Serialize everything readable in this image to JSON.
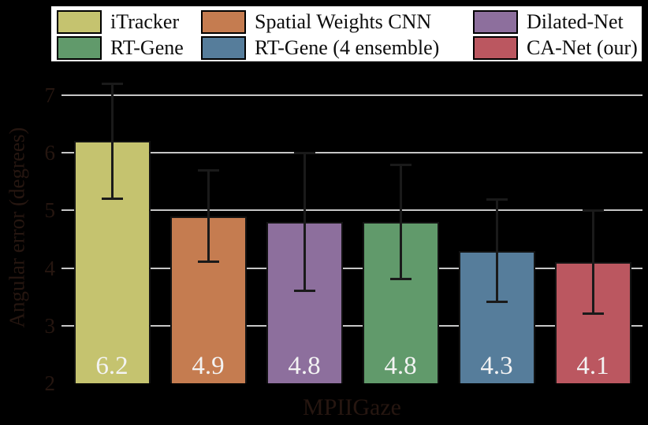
{
  "figure": {
    "background": "#000000",
    "grid_color": "#c6c6c6",
    "bar_label_color": "#f3f3f3",
    "axis_text_color": "#261610"
  },
  "legend": {
    "columns": [
      [
        {
          "label": "iTracker",
          "color": "#c5c36f"
        },
        {
          "label": "RT-Gene",
          "color": "#619a6b"
        }
      ],
      [
        {
          "label": "Spatial Weights CNN",
          "color": "#c57c50"
        },
        {
          "label": "RT-Gene (4 ensemble)",
          "color": "#567d9b"
        }
      ],
      [
        {
          "label": "Dilated-Net",
          "color": "#8d6f9d"
        },
        {
          "label": "CA-Net (our)",
          "color": "#bb5760"
        }
      ]
    ]
  },
  "chart_data": {
    "type": "bar",
    "title": "",
    "xlabel": "MPIIGaze",
    "ylabel": "Angular error (degrees)",
    "ylim": [
      2,
      7.42
    ],
    "yticks": [
      2,
      3,
      4,
      5,
      6,
      7
    ],
    "grid": true,
    "legend_position": "top",
    "categories": [
      "iTracker",
      "Spatial Weights CNN",
      "Dilated-Net",
      "RT-Gene",
      "RT-Gene (4 ensemble)",
      "CA-Net (our)"
    ],
    "values": [
      6.2,
      4.9,
      4.8,
      4.8,
      4.3,
      4.1
    ],
    "errors": [
      1.0,
      0.8,
      1.2,
      1.0,
      0.9,
      0.9
    ],
    "bar_labels": [
      "6.2",
      "4.9",
      "4.8",
      "4.8",
      "4.3",
      "4.1"
    ],
    "colors": [
      "#c5c36f",
      "#c57c50",
      "#8d6f9d",
      "#619a6b",
      "#567d9b",
      "#bb5760"
    ]
  }
}
